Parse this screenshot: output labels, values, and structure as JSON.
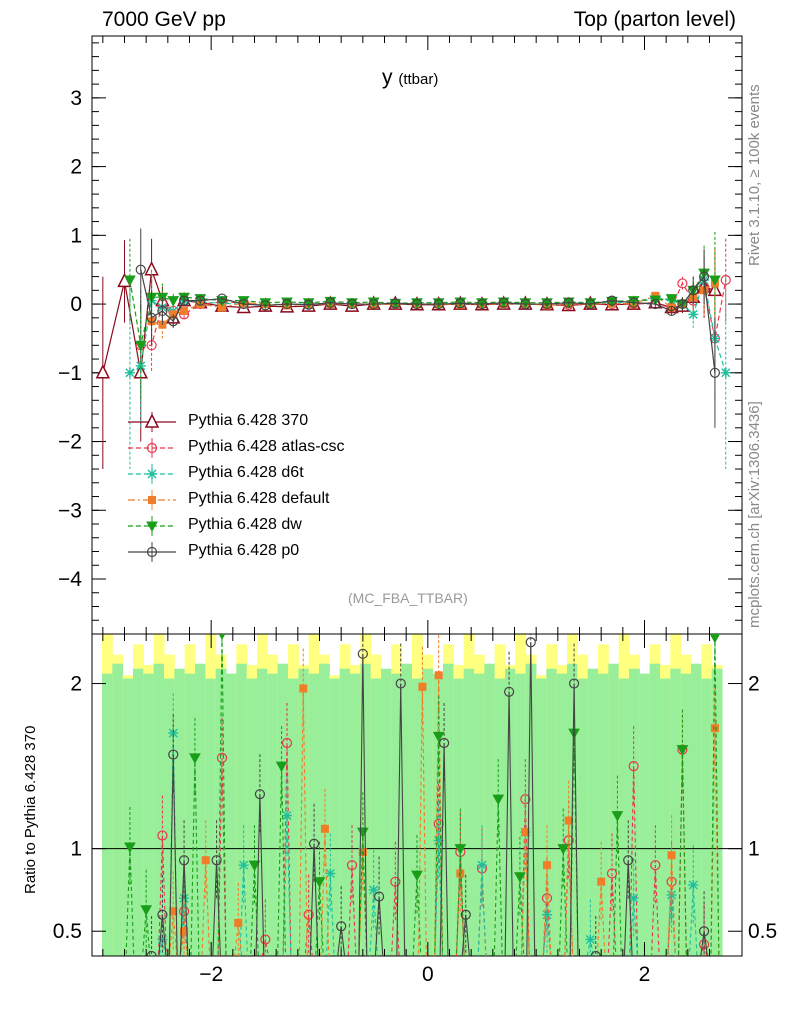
{
  "header": {
    "left": "7000 GeV pp",
    "right": "Top (parton level)"
  },
  "side_labels": {
    "rivet": "Rivet 3.1.10, ≥ 100k events",
    "mcplots": "mcplots.cern.ch [arXiv:1306.3436]"
  },
  "title_main": "y",
  "title_sub": "(ttbar)",
  "analysis": "(MC_FBA_TTBAR)",
  "ratio_ylabel": "Ratio to Pythia 6.428 370",
  "chart_data": [
    {
      "type": "line",
      "panel": "main",
      "xlim": [
        -3.1,
        2.9
      ],
      "ylim": [
        -4.8,
        3.9
      ],
      "yticks": [
        -4,
        -3,
        -2,
        -1,
        0,
        1,
        2,
        3
      ],
      "xticks": [
        -2,
        0,
        2
      ],
      "series": [
        {
          "name": "Pythia 6.428 370",
          "color": "#8b0a1e",
          "marker": "triangle",
          "dash": "solid",
          "x": [
            -3.0,
            -2.8,
            -2.65,
            -2.55,
            -2.45,
            -2.35,
            -2.25,
            -2.1,
            -1.9,
            -1.7,
            -1.5,
            -1.3,
            -1.1,
            -0.9,
            -0.7,
            -0.5,
            -0.3,
            -0.1,
            0.1,
            0.3,
            0.5,
            0.7,
            0.9,
            1.1,
            1.3,
            1.5,
            1.7,
            1.9,
            2.1,
            2.25,
            2.35,
            2.45,
            2.55,
            2.65
          ],
          "y": [
            -1.0,
            0.33,
            -1.0,
            0.5,
            0.05,
            -0.2,
            0.05,
            0.02,
            -0.03,
            -0.05,
            -0.03,
            -0.04,
            -0.03,
            0.0,
            -0.03,
            0.0,
            0.0,
            -0.01,
            -0.01,
            0.0,
            -0.01,
            0.0,
            0.0,
            -0.01,
            -0.02,
            0.0,
            -0.01,
            0.0,
            0.02,
            -0.05,
            -0.03,
            0.1,
            0.25,
            0.2
          ],
          "err": [
            1.4,
            0.6,
            1.0,
            0.45,
            0.2,
            0.12,
            0.06,
            0.04,
            0.03,
            0.03,
            0.02,
            0.02,
            0.02,
            0.02,
            0.02,
            0.02,
            0.02,
            0.02,
            0.02,
            0.02,
            0.02,
            0.02,
            0.02,
            0.02,
            0.02,
            0.02,
            0.03,
            0.03,
            0.04,
            0.06,
            0.1,
            0.2,
            0.45,
            0.6
          ]
        },
        {
          "name": "Pythia 6.428 atlas-csc",
          "color": "#e8364e",
          "marker": "circle-open",
          "dash": "dashed",
          "x": [
            -2.65,
            -2.55,
            -2.45,
            -2.35,
            -2.25,
            -2.1,
            -1.9,
            -1.7,
            -1.5,
            -1.3,
            -1.1,
            -0.9,
            -0.7,
            -0.5,
            -0.3,
            -0.1,
            0.1,
            0.3,
            0.5,
            0.7,
            0.9,
            1.1,
            1.3,
            1.5,
            1.7,
            1.9,
            2.1,
            2.25,
            2.35,
            2.45,
            2.55,
            2.65,
            2.75
          ],
          "y": [
            -0.6,
            -0.6,
            0.0,
            -0.1,
            -0.15,
            0.0,
            0.03,
            0.02,
            -0.02,
            0.0,
            0.0,
            0.01,
            0.0,
            0.0,
            0.01,
            0.0,
            0.0,
            0.0,
            0.0,
            0.01,
            0.0,
            0.0,
            -0.01,
            0.0,
            0.0,
            0.01,
            0.0,
            -0.05,
            0.3,
            0.05,
            0.25,
            -0.5,
            0.35
          ],
          "err": [
            0.5,
            0.4,
            0.2,
            0.1,
            0.06,
            0.04,
            0.03,
            0.02,
            0.02,
            0.02,
            0.02,
            0.02,
            0.02,
            0.02,
            0.02,
            0.02,
            0.02,
            0.02,
            0.02,
            0.02,
            0.02,
            0.02,
            0.02,
            0.02,
            0.02,
            0.03,
            0.04,
            0.06,
            0.1,
            0.2,
            0.35,
            0.5,
            0.6
          ]
        },
        {
          "name": "Pythia 6.428 d6t",
          "color": "#1fbf9e",
          "marker": "star",
          "dash": "dashed",
          "x": [
            -2.75,
            -2.65,
            -2.55,
            -2.45,
            -2.35,
            -2.25,
            -2.1,
            -1.9,
            -1.7,
            -1.5,
            -1.3,
            -1.1,
            -0.9,
            -0.7,
            -0.5,
            -0.3,
            -0.1,
            0.1,
            0.3,
            0.5,
            0.7,
            0.9,
            1.1,
            1.3,
            1.5,
            1.7,
            1.9,
            2.1,
            2.25,
            2.35,
            2.45,
            2.55,
            2.65,
            2.75
          ],
          "y": [
            -1.0,
            -0.9,
            0.05,
            -0.05,
            -0.1,
            0.05,
            0.03,
            0.01,
            0.0,
            -0.01,
            0.0,
            0.0,
            0.01,
            0.0,
            0.0,
            0.0,
            0.0,
            0.0,
            0.01,
            0.0,
            0.0,
            0.0,
            0.0,
            0.01,
            0.0,
            0.02,
            0.03,
            0.1,
            0.05,
            0.0,
            -0.15,
            0.35,
            -0.5,
            -1.0
          ],
          "err": [
            1.4,
            0.9,
            0.4,
            0.2,
            0.1,
            0.06,
            0.04,
            0.03,
            0.02,
            0.02,
            0.02,
            0.02,
            0.02,
            0.02,
            0.02,
            0.02,
            0.02,
            0.02,
            0.02,
            0.02,
            0.02,
            0.02,
            0.02,
            0.02,
            0.02,
            0.02,
            0.03,
            0.04,
            0.06,
            0.1,
            0.2,
            0.4,
            0.9,
            1.4
          ]
        },
        {
          "name": "Pythia 6.428 default",
          "color": "#f07d28",
          "marker": "square",
          "dash": "dashdot",
          "x": [
            -2.55,
            -2.45,
            -2.35,
            -2.25,
            -2.1,
            -1.9,
            -1.7,
            -1.5,
            -1.3,
            -1.1,
            -0.9,
            -0.7,
            -0.5,
            -0.3,
            -0.1,
            0.1,
            0.3,
            0.5,
            0.7,
            0.9,
            1.1,
            1.3,
            1.5,
            1.7,
            1.9,
            2.1,
            2.25,
            2.35,
            2.45,
            2.55,
            2.65
          ],
          "y": [
            -0.25,
            -0.3,
            -0.15,
            -0.1,
            0.0,
            -0.05,
            0.02,
            0.0,
            -0.02,
            0.0,
            0.0,
            0.01,
            -0.01,
            0.0,
            0.0,
            0.0,
            -0.01,
            0.0,
            0.0,
            0.01,
            -0.02,
            0.0,
            0.0,
            0.01,
            0.0,
            0.12,
            -0.05,
            0.0,
            0.1,
            0.2,
            0.3
          ],
          "err": [
            0.4,
            0.2,
            0.1,
            0.06,
            0.04,
            0.03,
            0.02,
            0.02,
            0.02,
            0.02,
            0.02,
            0.02,
            0.02,
            0.02,
            0.02,
            0.02,
            0.02,
            0.02,
            0.02,
            0.02,
            0.02,
            0.02,
            0.02,
            0.02,
            0.03,
            0.04,
            0.06,
            0.1,
            0.2,
            0.4,
            0.5
          ]
        },
        {
          "name": "Pythia 6.428 dw",
          "color": "#1a9e1a",
          "marker": "triangle-down",
          "dash": "dashed",
          "x": [
            -2.75,
            -2.65,
            -2.55,
            -2.45,
            -2.35,
            -2.25,
            -2.1,
            -1.9,
            -1.7,
            -1.5,
            -1.3,
            -1.1,
            -0.9,
            -0.7,
            -0.5,
            -0.3,
            -0.1,
            0.1,
            0.3,
            0.5,
            0.7,
            0.9,
            1.1,
            1.3,
            1.5,
            1.7,
            1.9,
            2.1,
            2.25,
            2.35,
            2.45,
            2.55,
            2.65
          ],
          "y": [
            0.35,
            -0.6,
            0.1,
            0.1,
            0.05,
            0.1,
            0.08,
            0.05,
            0.05,
            0.02,
            0.03,
            0.02,
            0.04,
            0.02,
            0.03,
            0.01,
            0.02,
            0.02,
            0.03,
            0.02,
            0.03,
            0.02,
            0.02,
            0.03,
            0.02,
            0.04,
            0.05,
            0.06,
            0.08,
            0.0,
            0.2,
            0.45,
            0.35
          ],
          "err": [
            0.6,
            0.8,
            0.4,
            0.2,
            0.1,
            0.06,
            0.04,
            0.03,
            0.02,
            0.02,
            0.02,
            0.02,
            0.02,
            0.02,
            0.02,
            0.02,
            0.02,
            0.02,
            0.02,
            0.02,
            0.02,
            0.02,
            0.02,
            0.02,
            0.02,
            0.03,
            0.03,
            0.04,
            0.06,
            0.1,
            0.2,
            0.4,
            0.7
          ]
        },
        {
          "name": "Pythia 6.428 p0",
          "color": "#444444",
          "marker": "circle-open",
          "dash": "solid",
          "x": [
            -2.65,
            -2.55,
            -2.45,
            -2.35,
            -2.25,
            -2.1,
            -1.9,
            -1.7,
            -1.5,
            -1.3,
            -1.1,
            -0.9,
            -0.7,
            -0.5,
            -0.3,
            -0.1,
            0.1,
            0.3,
            0.5,
            0.7,
            0.9,
            1.1,
            1.3,
            1.5,
            1.7,
            1.9,
            2.1,
            2.25,
            2.35,
            2.45,
            2.55,
            2.65
          ],
          "y": [
            0.5,
            -0.2,
            -0.1,
            -0.25,
            0.05,
            0.05,
            0.08,
            0.0,
            -0.02,
            0.0,
            -0.01,
            0.02,
            0.0,
            0.0,
            0.01,
            0.0,
            0.0,
            0.01,
            0.0,
            0.02,
            0.0,
            0.0,
            0.02,
            0.0,
            0.05,
            0.02,
            0.0,
            -0.1,
            0.0,
            0.2,
            0.4,
            -1.0
          ],
          "err": [
            0.6,
            0.4,
            0.2,
            0.1,
            0.06,
            0.04,
            0.03,
            0.02,
            0.02,
            0.02,
            0.02,
            0.02,
            0.02,
            0.02,
            0.02,
            0.02,
            0.02,
            0.02,
            0.02,
            0.02,
            0.02,
            0.02,
            0.02,
            0.02,
            0.02,
            0.03,
            0.04,
            0.06,
            0.1,
            0.2,
            0.4,
            0.8
          ]
        }
      ]
    },
    {
      "type": "line",
      "panel": "ratio",
      "ylabel": "Ratio to Pythia 6.428 370",
      "ylim": [
        0.35,
        2.3
      ],
      "yticks": [
        0.5,
        1,
        2
      ],
      "xticks": [
        -2,
        0,
        2
      ],
      "reference": 1,
      "series": [
        {
          "name": "Pythia 6.428 atlas-csc",
          "color": "#e8364e",
          "x": [
            -2.45,
            -2.25,
            -1.9,
            -1.5,
            -1.3,
            -1.1,
            -0.7,
            -0.3,
            0.1,
            0.3,
            0.5,
            0.9,
            1.1,
            1.3,
            1.7,
            1.9,
            2.1,
            2.25,
            2.35,
            2.55
          ],
          "y": [
            1.08,
            0.62,
            1.55,
            0.45,
            1.64,
            0.6,
            0.9,
            0.8,
            1.15,
            0.98,
            0.88,
            1.3,
            0.7,
            1.05,
            0.85,
            1.5,
            0.9,
            0.8,
            1.6,
            0.42
          ]
        },
        {
          "name": "Pythia 6.428 d6t",
          "color": "#1fbf9e",
          "x": [
            -2.45,
            -2.35,
            -2.25,
            -1.7,
            -1.3,
            -0.9,
            -0.5,
            0.1,
            0.5,
            0.9,
            1.1,
            1.5,
            1.9,
            2.25,
            2.45
          ],
          "y": [
            0.45,
            1.7,
            0.7,
            0.9,
            1.2,
            0.85,
            0.75,
            1.05,
            0.9,
            1.1,
            0.6,
            0.45,
            0.7,
            0.72,
            0.78
          ]
        },
        {
          "name": "Pythia 6.428 default",
          "color": "#f07d28",
          "x": [
            -2.35,
            -2.25,
            -2.05,
            -1.75,
            -1.15,
            -0.95,
            -0.6,
            -0.05,
            0.1,
            0.3,
            0.9,
            1.1,
            1.3,
            1.6,
            2.25,
            2.65
          ],
          "y": [
            0.62,
            0.5,
            0.93,
            0.55,
            1.97,
            1.12,
            0.98,
            1.98,
            2.05,
            0.85,
            1.1,
            0.9,
            1.17,
            0.8,
            0.96,
            1.73
          ]
        },
        {
          "name": "Pythia 6.428 dw",
          "color": "#1a9e1a",
          "x": [
            -2.75,
            -2.6,
            -2.15,
            -1.9,
            -1.6,
            -1.35,
            -1.0,
            -0.6,
            -0.1,
            0.1,
            0.3,
            0.65,
            0.85,
            1.25,
            1.35,
            1.75,
            2.35,
            2.65
          ],
          "y": [
            1.01,
            0.63,
            1.55,
            2.3,
            0.9,
            1.5,
            0.8,
            1.1,
            0.84,
            1.68,
            1.0,
            1.3,
            0.83,
            1.0,
            1.7,
            1.2,
            1.6,
            2.28
          ]
        },
        {
          "name": "Pythia 6.428 p0",
          "color": "#444444",
          "x": [
            -2.55,
            -2.45,
            -2.35,
            -2.25,
            -1.95,
            -1.55,
            -1.05,
            -0.8,
            -0.6,
            -0.45,
            -0.25,
            0.15,
            0.35,
            0.75,
            0.95,
            1.35,
            1.55,
            1.85,
            2.55
          ],
          "y": [
            0.35,
            0.6,
            1.57,
            0.93,
            0.93,
            1.33,
            1.03,
            0.53,
            2.18,
            0.71,
            2.0,
            1.64,
            0.6,
            1.95,
            2.25,
            2.0,
            0.35,
            0.93,
            0.5
          ]
        }
      ]
    }
  ]
}
